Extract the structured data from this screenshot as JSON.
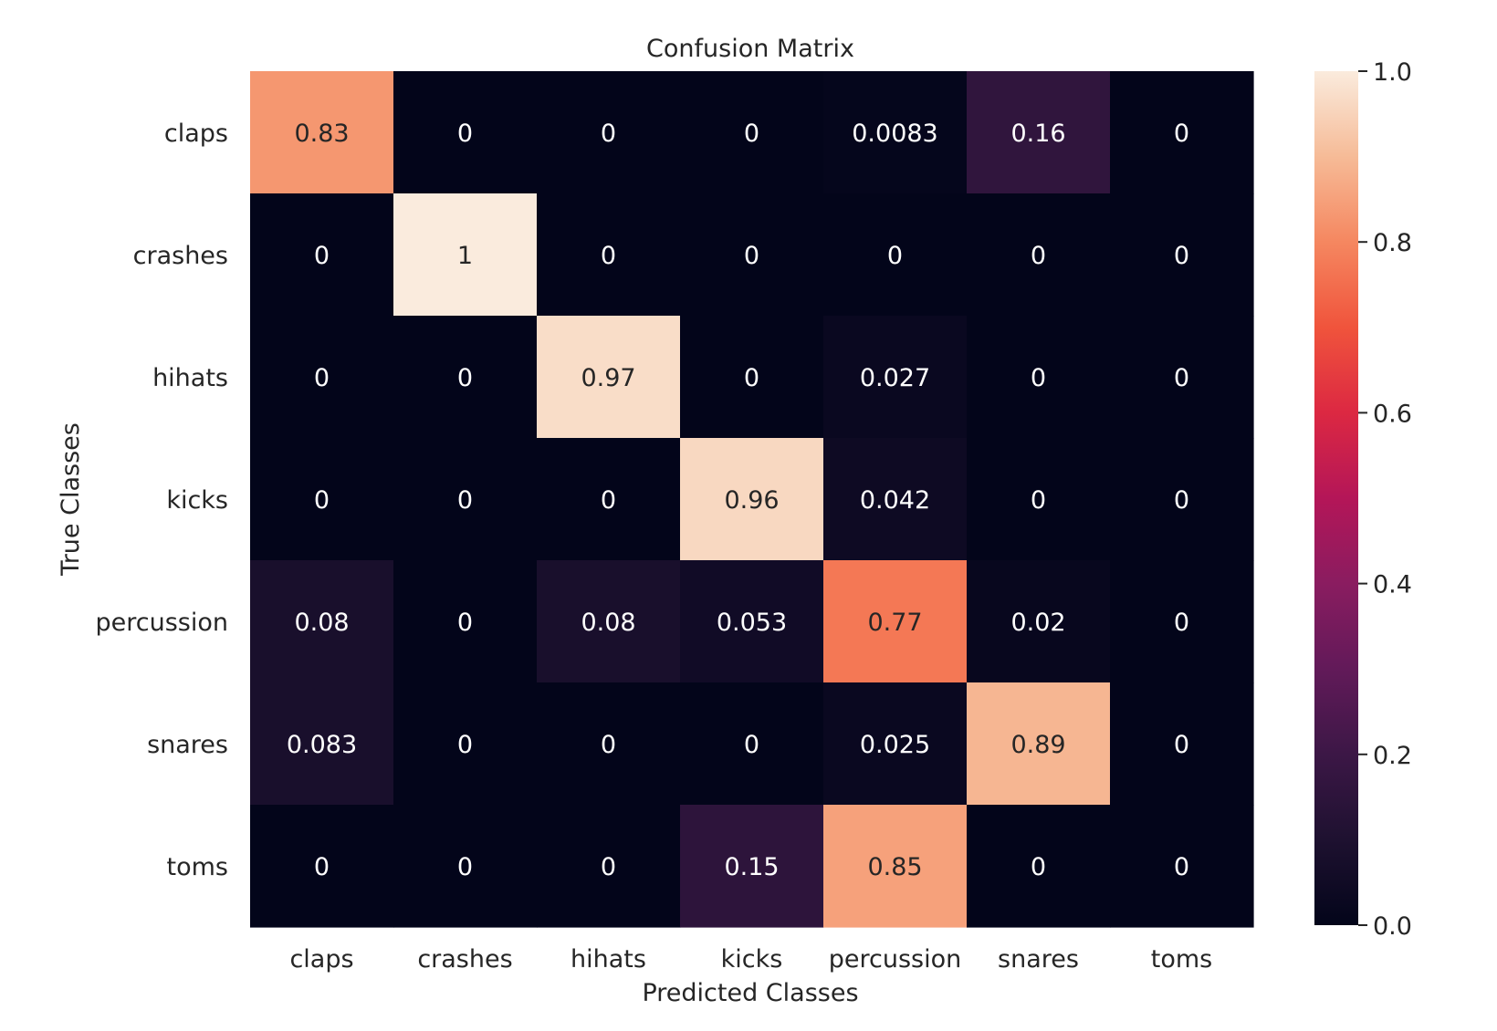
{
  "chart_data": {
    "type": "heatmap",
    "title": "Confusion Matrix",
    "xlabel": "Predicted Classes",
    "ylabel": "True Classes",
    "x_categories": [
      "claps",
      "crashes",
      "hihats",
      "kicks",
      "percussion",
      "snares",
      "toms"
    ],
    "y_categories": [
      "claps",
      "crashes",
      "hihats",
      "kicks",
      "percussion",
      "snares",
      "toms"
    ],
    "matrix": [
      [
        0.83,
        0,
        0,
        0,
        0.0083,
        0.16,
        0
      ],
      [
        0,
        1,
        0,
        0,
        0,
        0,
        0
      ],
      [
        0,
        0,
        0.97,
        0,
        0.027,
        0,
        0
      ],
      [
        0,
        0,
        0,
        0.96,
        0.042,
        0,
        0
      ],
      [
        0.08,
        0,
        0.08,
        0.053,
        0.77,
        0.02,
        0
      ],
      [
        0.083,
        0,
        0,
        0,
        0.025,
        0.89,
        0
      ],
      [
        0,
        0,
        0,
        0.15,
        0.85,
        0,
        0
      ]
    ],
    "cell_labels": [
      [
        "0.83",
        "0",
        "0",
        "0",
        "0.0083",
        "0.16",
        "0"
      ],
      [
        "0",
        "1",
        "0",
        "0",
        "0",
        "0",
        "0"
      ],
      [
        "0",
        "0",
        "0.97",
        "0",
        "0.027",
        "0",
        "0"
      ],
      [
        "0",
        "0",
        "0",
        "0.96",
        "0.042",
        "0",
        "0"
      ],
      [
        "0.08",
        "0",
        "0.08",
        "0.053",
        "0.77",
        "0.02",
        "0"
      ],
      [
        "0.083",
        "0",
        "0",
        "0",
        "0.025",
        "0.89",
        "0"
      ],
      [
        "0",
        "0",
        "0",
        "0.15",
        "0.85",
        "0",
        "0"
      ]
    ],
    "colorbar": {
      "range": [
        0,
        1
      ],
      "ticks": [
        0.0,
        0.2,
        0.4,
        0.6,
        0.8,
        1.0
      ],
      "tick_labels": [
        "0.0",
        "0.2",
        "0.4",
        "0.6",
        "0.8",
        "1.0"
      ]
    },
    "colormap": "rocket"
  }
}
